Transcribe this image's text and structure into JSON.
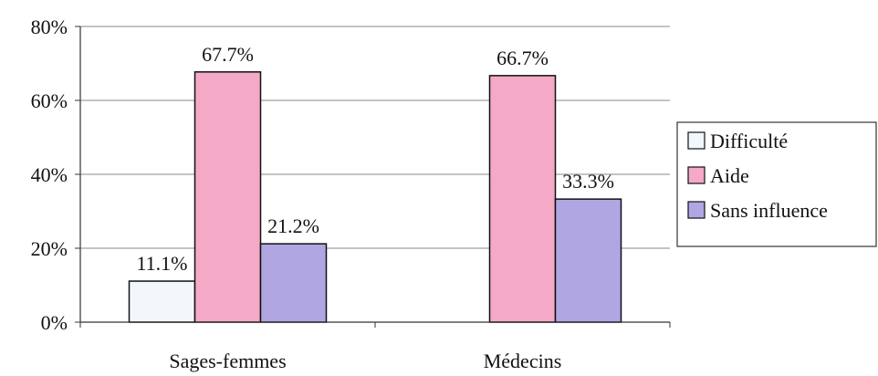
{
  "chart_data": {
    "type": "bar",
    "categories": [
      "Sages-femmes",
      "Médecins"
    ],
    "series": [
      {
        "name": "Difficulté",
        "values": [
          11.1,
          null
        ],
        "labels": [
          "11.1%",
          ""
        ],
        "color": "#f1f7fa"
      },
      {
        "name": "Aide",
        "values": [
          67.7,
          66.7
        ],
        "labels": [
          "67.7%",
          "66.7%"
        ],
        "color": "#f4a9c6"
      },
      {
        "name": "Sans influence",
        "values": [
          21.2,
          33.3
        ],
        "labels": [
          "21.2%",
          "33.3%"
        ],
        "color": "#b0a6e2"
      }
    ],
    "ylim": [
      0,
      80
    ],
    "yticks": [
      0,
      20,
      40,
      60,
      80
    ],
    "ytick_labels": [
      "0%",
      "20%",
      "40%",
      "60%",
      "80%"
    ],
    "title": "",
    "xlabel": "",
    "ylabel": "",
    "grid": true,
    "legend_position": "right"
  }
}
